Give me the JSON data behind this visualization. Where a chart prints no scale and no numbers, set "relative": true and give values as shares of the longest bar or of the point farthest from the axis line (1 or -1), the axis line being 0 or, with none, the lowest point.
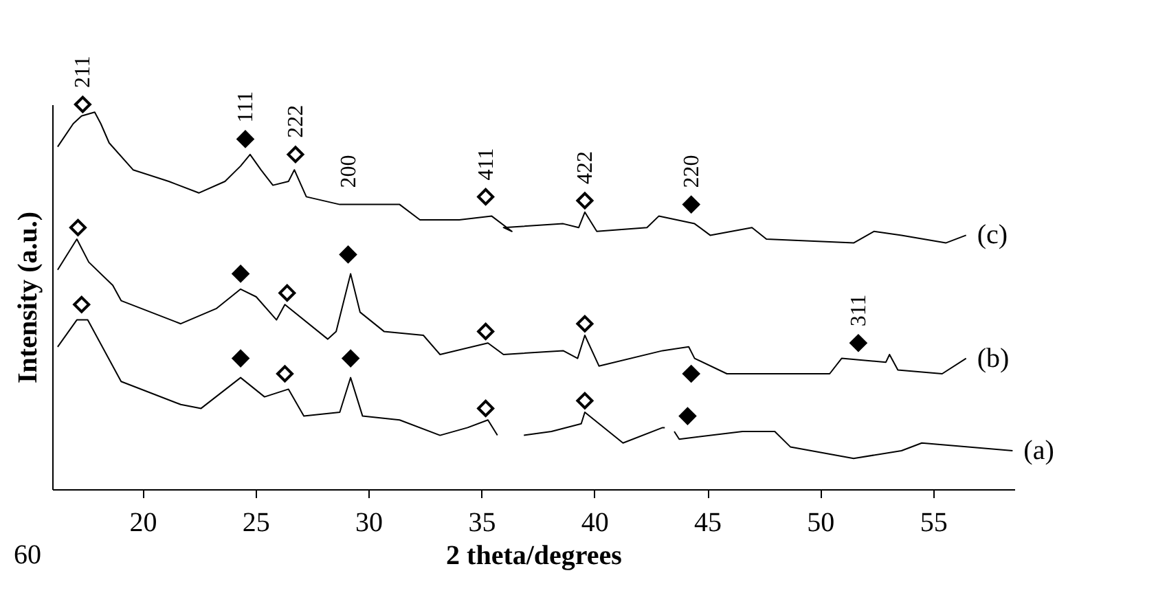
{
  "chart_data": {
    "type": "line",
    "relative": true,
    "xlabel": "2 theta/degrees",
    "ylabel": "Intensity (a.u.)",
    "xlim": [
      16,
      58.6
    ],
    "xticks": [
      20,
      25,
      30,
      35,
      40,
      45,
      50,
      55
    ],
    "grid": false,
    "line_style": "solid",
    "series": [
      {
        "name": "(c)",
        "color": "#000000",
        "x": [
          16.24,
          16.93,
          17.3,
          17.88,
          18.15,
          18.52,
          19.58,
          21.16,
          22.49,
          23.65,
          24.34,
          24.76,
          25.24,
          25.77,
          26.46,
          26.72,
          27.25,
          28.73,
          31.38,
          32.28,
          34.02,
          35.45,
          36.35,
          35.98,
          38.62,
          39.31,
          39.58,
          40.11,
          42.33,
          42.86,
          44.44,
          45.13,
          46.98,
          47.62,
          51.48,
          52.38,
          53.6,
          55.56,
          56.46
        ],
        "values": [
          0.89,
          0.95,
          0.97,
          0.98,
          0.95,
          0.9,
          0.83,
          0.8,
          0.77,
          0.8,
          0.84,
          0.87,
          0.83,
          0.79,
          0.8,
          0.83,
          0.76,
          0.74,
          0.74,
          0.7,
          0.7,
          0.71,
          0.67,
          0.68,
          0.69,
          0.68,
          0.72,
          0.67,
          0.68,
          0.71,
          0.69,
          0.66,
          0.68,
          0.65,
          0.64,
          0.67,
          0.66,
          0.64,
          0.66
        ]
      },
      {
        "name": "(b)",
        "color": "#000000",
        "x": [
          16.24,
          17.09,
          17.62,
          18.68,
          19.05,
          21.69,
          23.28,
          24.34,
          25.03,
          25.93,
          26.3,
          28.2,
          28.57,
          29.21,
          29.63,
          30.69,
          32.43,
          33.17,
          35.29,
          35.98,
          38.62,
          39.26,
          39.58,
          40.21,
          43.02,
          44.18,
          44.44,
          45.87,
          50.42,
          50.95,
          52.91,
          53.07,
          53.44,
          55.4,
          56.46
        ],
        "values": [
          0.57,
          0.65,
          0.59,
          0.53,
          0.49,
          0.43,
          0.47,
          0.52,
          0.5,
          0.44,
          0.48,
          0.39,
          0.41,
          0.56,
          0.46,
          0.41,
          0.4,
          0.35,
          0.38,
          0.35,
          0.36,
          0.34,
          0.4,
          0.32,
          0.36,
          0.37,
          0.34,
          0.3,
          0.3,
          0.34,
          0.33,
          0.35,
          0.31,
          0.3,
          0.34
        ]
      },
      {
        "name": "(a)",
        "color": "#000000",
        "x": [
          16.24,
          17.09,
          17.57,
          19.05,
          21.69,
          22.59,
          24.34,
          25.4,
          26.46,
          27.14,
          28.73,
          29.21,
          29.74,
          31.38,
          33.17,
          34.39,
          35.29,
          35.71,
          36.3,
          36.88,
          38.1,
          39.42,
          39.58,
          41.27,
          43.02,
          43.12,
          43.3,
          43.54,
          43.76,
          46.56,
          47.99,
          48.68,
          51.48,
          53.6,
          54.5,
          58.52
        ],
        "values": [
          0.37,
          0.44,
          0.44,
          0.28,
          0.22,
          0.21,
          0.29,
          0.24,
          0.26,
          0.19,
          0.2,
          0.29,
          0.19,
          0.18,
          0.14,
          0.16,
          0.18,
          0.14,
          null,
          0.14,
          0.15,
          0.17,
          0.2,
          0.12,
          0.16,
          0.16,
          null,
          0.15,
          0.13,
          0.15,
          0.15,
          0.11,
          0.08,
          0.1,
          0.12,
          0.1
        ]
      },
      {
        "type": "scatter",
        "marker": "diamond",
        "color": "#ffffff",
        "x": [
          17.35,
          26.77,
          35.19,
          39.58,
          17.14,
          26.4,
          35.19,
          39.58,
          17.3,
          26.3,
          35.19,
          39.58
        ],
        "values": [
          1.0,
          0.87,
          0.76,
          0.75,
          0.68,
          0.51,
          0.41,
          0.43,
          0.48,
          0.3,
          0.21,
          0.23
        ]
      },
      {
        "type": "scatter",
        "marker": "diamond",
        "color": "#000000",
        "x": [
          24.55,
          44.29,
          24.34,
          29.1,
          44.29,
          51.69,
          24.34,
          29.21,
          44.13
        ],
        "values": [
          0.91,
          0.74,
          0.56,
          0.61,
          0.3,
          0.38,
          0.34,
          0.34,
          0.19
        ]
      }
    ],
    "annotations": [
      {
        "text": "211",
        "x": 17.35,
        "y": 1.0
      },
      {
        "text": "111",
        "x": 24.55,
        "y": 0.91
      },
      {
        "text": "222",
        "x": 26.77,
        "y": 0.87
      },
      {
        "text": "200",
        "x": 29.1,
        "y": 0.74
      },
      {
        "text": "411",
        "x": 35.19,
        "y": 0.76
      },
      {
        "text": "422",
        "x": 39.58,
        "y": 0.75
      },
      {
        "text": "220",
        "x": 44.29,
        "y": 0.74
      },
      {
        "text": "311",
        "x": 51.69,
        "y": 0.38
      },
      "60"
    ]
  }
}
